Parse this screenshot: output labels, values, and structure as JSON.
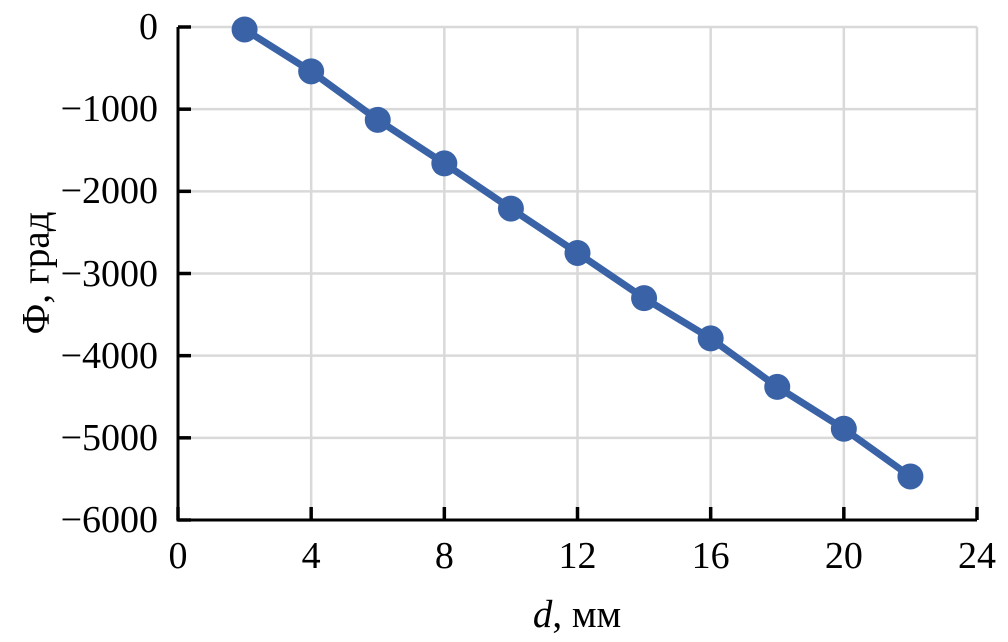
{
  "figure": {
    "background_color": "#ffffff",
    "axis_color": "#000000",
    "grid_color": "#d9d9d9",
    "series_color": "#3a62a6",
    "text_color": "#000000"
  },
  "chart_data": {
    "type": "line",
    "title": "",
    "xlabel": "d, мм",
    "xlabel_italic": "d",
    "xlabel_rest": ", мм",
    "ylabel": "Ф, град",
    "x": [
      2,
      4,
      6,
      8,
      10,
      12,
      14,
      16,
      18,
      20,
      22
    ],
    "y": [
      -30,
      -540,
      -1130,
      -1660,
      -2210,
      -2750,
      -3300,
      -3790,
      -4380,
      -4890,
      -5470
    ],
    "xlim": [
      0,
      24
    ],
    "ylim": [
      -6000,
      0
    ],
    "x_ticks": [
      0,
      4,
      8,
      12,
      16,
      20,
      24
    ],
    "y_ticks": [
      0,
      -1000,
      -2000,
      -3000,
      -4000,
      -5000,
      -6000
    ],
    "x_tick_labels": [
      "0",
      "4",
      "8",
      "12",
      "16",
      "20",
      "24"
    ],
    "y_tick_labels": [
      "0",
      "−1000",
      "−2000",
      "−3000",
      "−4000",
      "−5000",
      "−6000"
    ],
    "grid": true,
    "legend": false,
    "marker": "circle",
    "tick_style": "inside"
  }
}
